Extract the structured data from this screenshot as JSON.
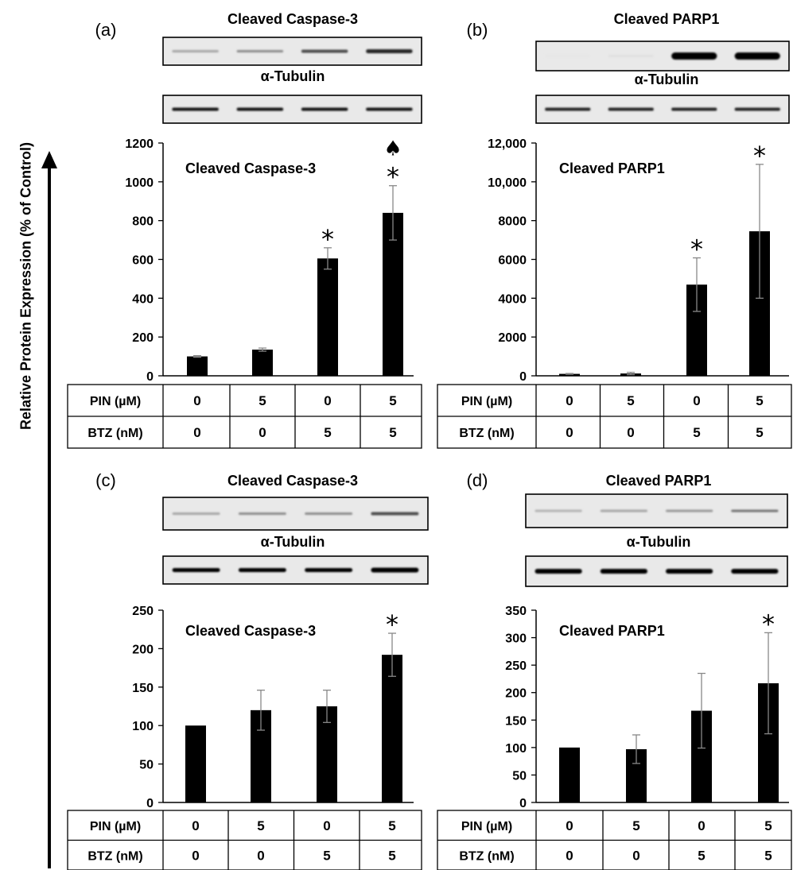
{
  "figure": {
    "y_axis_label": "Relative Protein Expression (% of Control)",
    "table_row_labels": [
      "PIN (µM)",
      "BTZ (nM)"
    ],
    "pin_values": [
      "0",
      "5",
      "0",
      "5"
    ],
    "btz_values": [
      "0",
      "0",
      "5",
      "5"
    ]
  },
  "chart_data": [
    {
      "type": "bar",
      "panel": "(a)",
      "blot_top_label": "Cleaved Caspase-3",
      "blot_bottom_label": "α-Tubulin",
      "title": "Cleaved Caspase-3",
      "categories": [
        "PIN 0 / BTZ 0",
        "PIN 5 / BTZ 0",
        "PIN 0 / BTZ 5",
        "PIN 5 / BTZ 5"
      ],
      "values": [
        100,
        135,
        605,
        840
      ],
      "errors": [
        4,
        8,
        55,
        140
      ],
      "annotations": [
        "",
        "",
        "*",
        "♠ *"
      ],
      "ylim": [
        0,
        1200
      ],
      "yticks": [
        0,
        200,
        400,
        600,
        800,
        1000,
        1200
      ],
      "ytick_labels": [
        "0",
        "200",
        "400",
        "600",
        "800",
        "1000",
        "1200"
      ],
      "bar_color": "#000000",
      "grid": false
    },
    {
      "type": "bar",
      "panel": "(b)",
      "blot_top_label": "Cleaved PARP1",
      "blot_bottom_label": "α-Tubulin",
      "title": "Cleaved PARP1",
      "categories": [
        "PIN 0 / BTZ 0",
        "PIN 5 / BTZ 0",
        "PIN 0 / BTZ 5",
        "PIN 5 / BTZ 5"
      ],
      "values": [
        100,
        120,
        4700,
        7450
      ],
      "errors": [
        20,
        60,
        1380,
        3450
      ],
      "annotations": [
        "",
        "",
        "*",
        "*"
      ],
      "ylim": [
        0,
        12000
      ],
      "yticks": [
        0,
        2000,
        4000,
        6000,
        8000,
        10000,
        12000
      ],
      "ytick_labels": [
        "0",
        "2000",
        "4000",
        "6000",
        "8000",
        "10,000",
        "12,000"
      ],
      "bar_color": "#000000",
      "grid": false
    },
    {
      "type": "bar",
      "panel": "(c)",
      "blot_top_label": "Cleaved Caspase-3",
      "blot_bottom_label": "α-Tubulin",
      "title": "Cleaved Caspase-3",
      "categories": [
        "PIN 0 / BTZ 0",
        "PIN 5 / BTZ 0",
        "PIN 0 / BTZ 5",
        "PIN 5 / BTZ 5"
      ],
      "values": [
        100,
        120,
        125,
        192
      ],
      "errors": [
        0,
        26,
        21,
        28
      ],
      "annotations": [
        "",
        "",
        "",
        "*"
      ],
      "ylim": [
        0,
        250
      ],
      "yticks": [
        0,
        50,
        100,
        150,
        200,
        250
      ],
      "ytick_labels": [
        "0",
        "50",
        "100",
        "150",
        "200",
        "250"
      ],
      "bar_color": "#000000",
      "grid": false
    },
    {
      "type": "bar",
      "panel": "(d)",
      "blot_top_label": "Cleaved PARP1",
      "blot_bottom_label": "α-Tubulin",
      "title": "Cleaved PARP1",
      "categories": [
        "PIN 0 / BTZ 0",
        "PIN 5 / BTZ 0",
        "PIN 0 / BTZ 5",
        "PIN 5 / BTZ 5"
      ],
      "values": [
        100,
        97,
        167,
        217
      ],
      "errors": [
        0,
        26,
        68,
        92
      ],
      "annotations": [
        "",
        "",
        "",
        "*"
      ],
      "ylim": [
        0,
        350
      ],
      "yticks": [
        0,
        50,
        100,
        150,
        200,
        250,
        300,
        350
      ],
      "ytick_labels": [
        "0",
        "50",
        "100",
        "150",
        "200",
        "250",
        "300",
        "350"
      ],
      "bar_color": "#000000",
      "grid": false
    }
  ]
}
